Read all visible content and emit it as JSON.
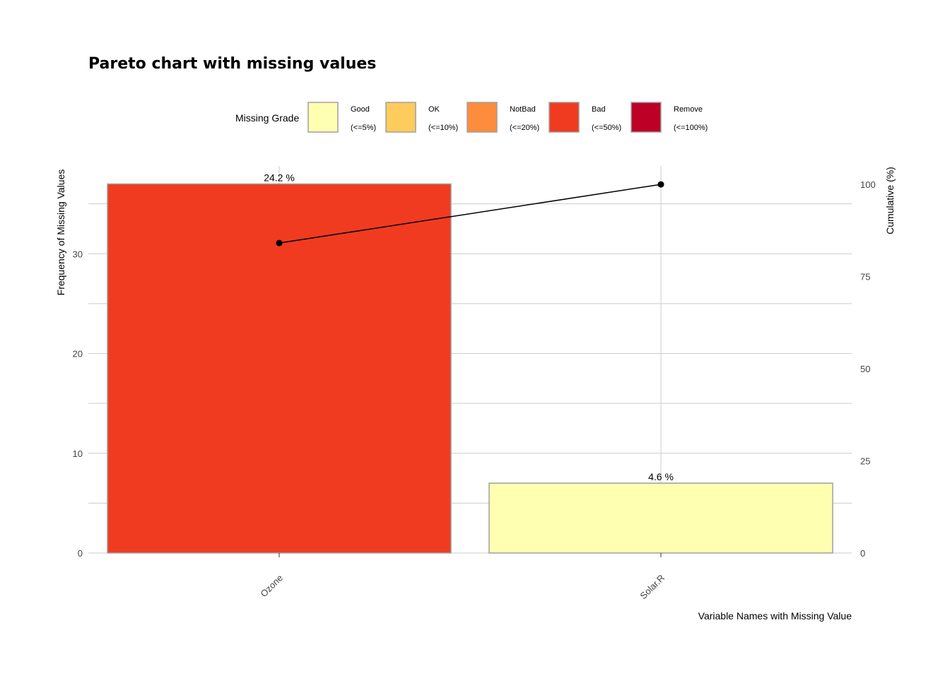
{
  "chart_data": {
    "type": "bar",
    "title": "Pareto chart with missing values",
    "xlabel": "Variable Names with Missing Value",
    "ylabel": "Frequency of Missing Values",
    "y2label": "Cumulative (%)",
    "categories": [
      "Ozone",
      "Solar.R"
    ],
    "values": [
      37,
      7
    ],
    "bar_labels": [
      "24.2 %",
      "4.6 %"
    ],
    "bar_grades": [
      "Bad",
      "Good"
    ],
    "cumulative": [
      84.1,
      100
    ],
    "ylim": [
      0,
      38.8
    ],
    "y_ticks": [
      "0",
      "10",
      "20",
      "30"
    ],
    "y2lim": [
      0,
      105
    ],
    "y2_ticks": [
      "0",
      "25",
      "50",
      "75",
      "100"
    ],
    "grid": true,
    "legend": {
      "title": "Missing Grade",
      "position": "top",
      "items": [
        {
          "name": "Good",
          "range": "(<=5%)",
          "color": "#FFFFB2"
        },
        {
          "name": "OK",
          "range": "(<=10%)",
          "color": "#FECC5C"
        },
        {
          "name": "NotBad",
          "range": "(<=20%)",
          "color": "#FD8D3C"
        },
        {
          "name": "Bad",
          "range": "(<=50%)",
          "color": "#F03B20"
        },
        {
          "name": "Remove",
          "range": "(<=100%)",
          "color": "#BD0026"
        }
      ]
    },
    "colors": {
      "bar_outline": "#A0A0A0",
      "line": "#000000",
      "grid": "#CCCCCC"
    }
  }
}
